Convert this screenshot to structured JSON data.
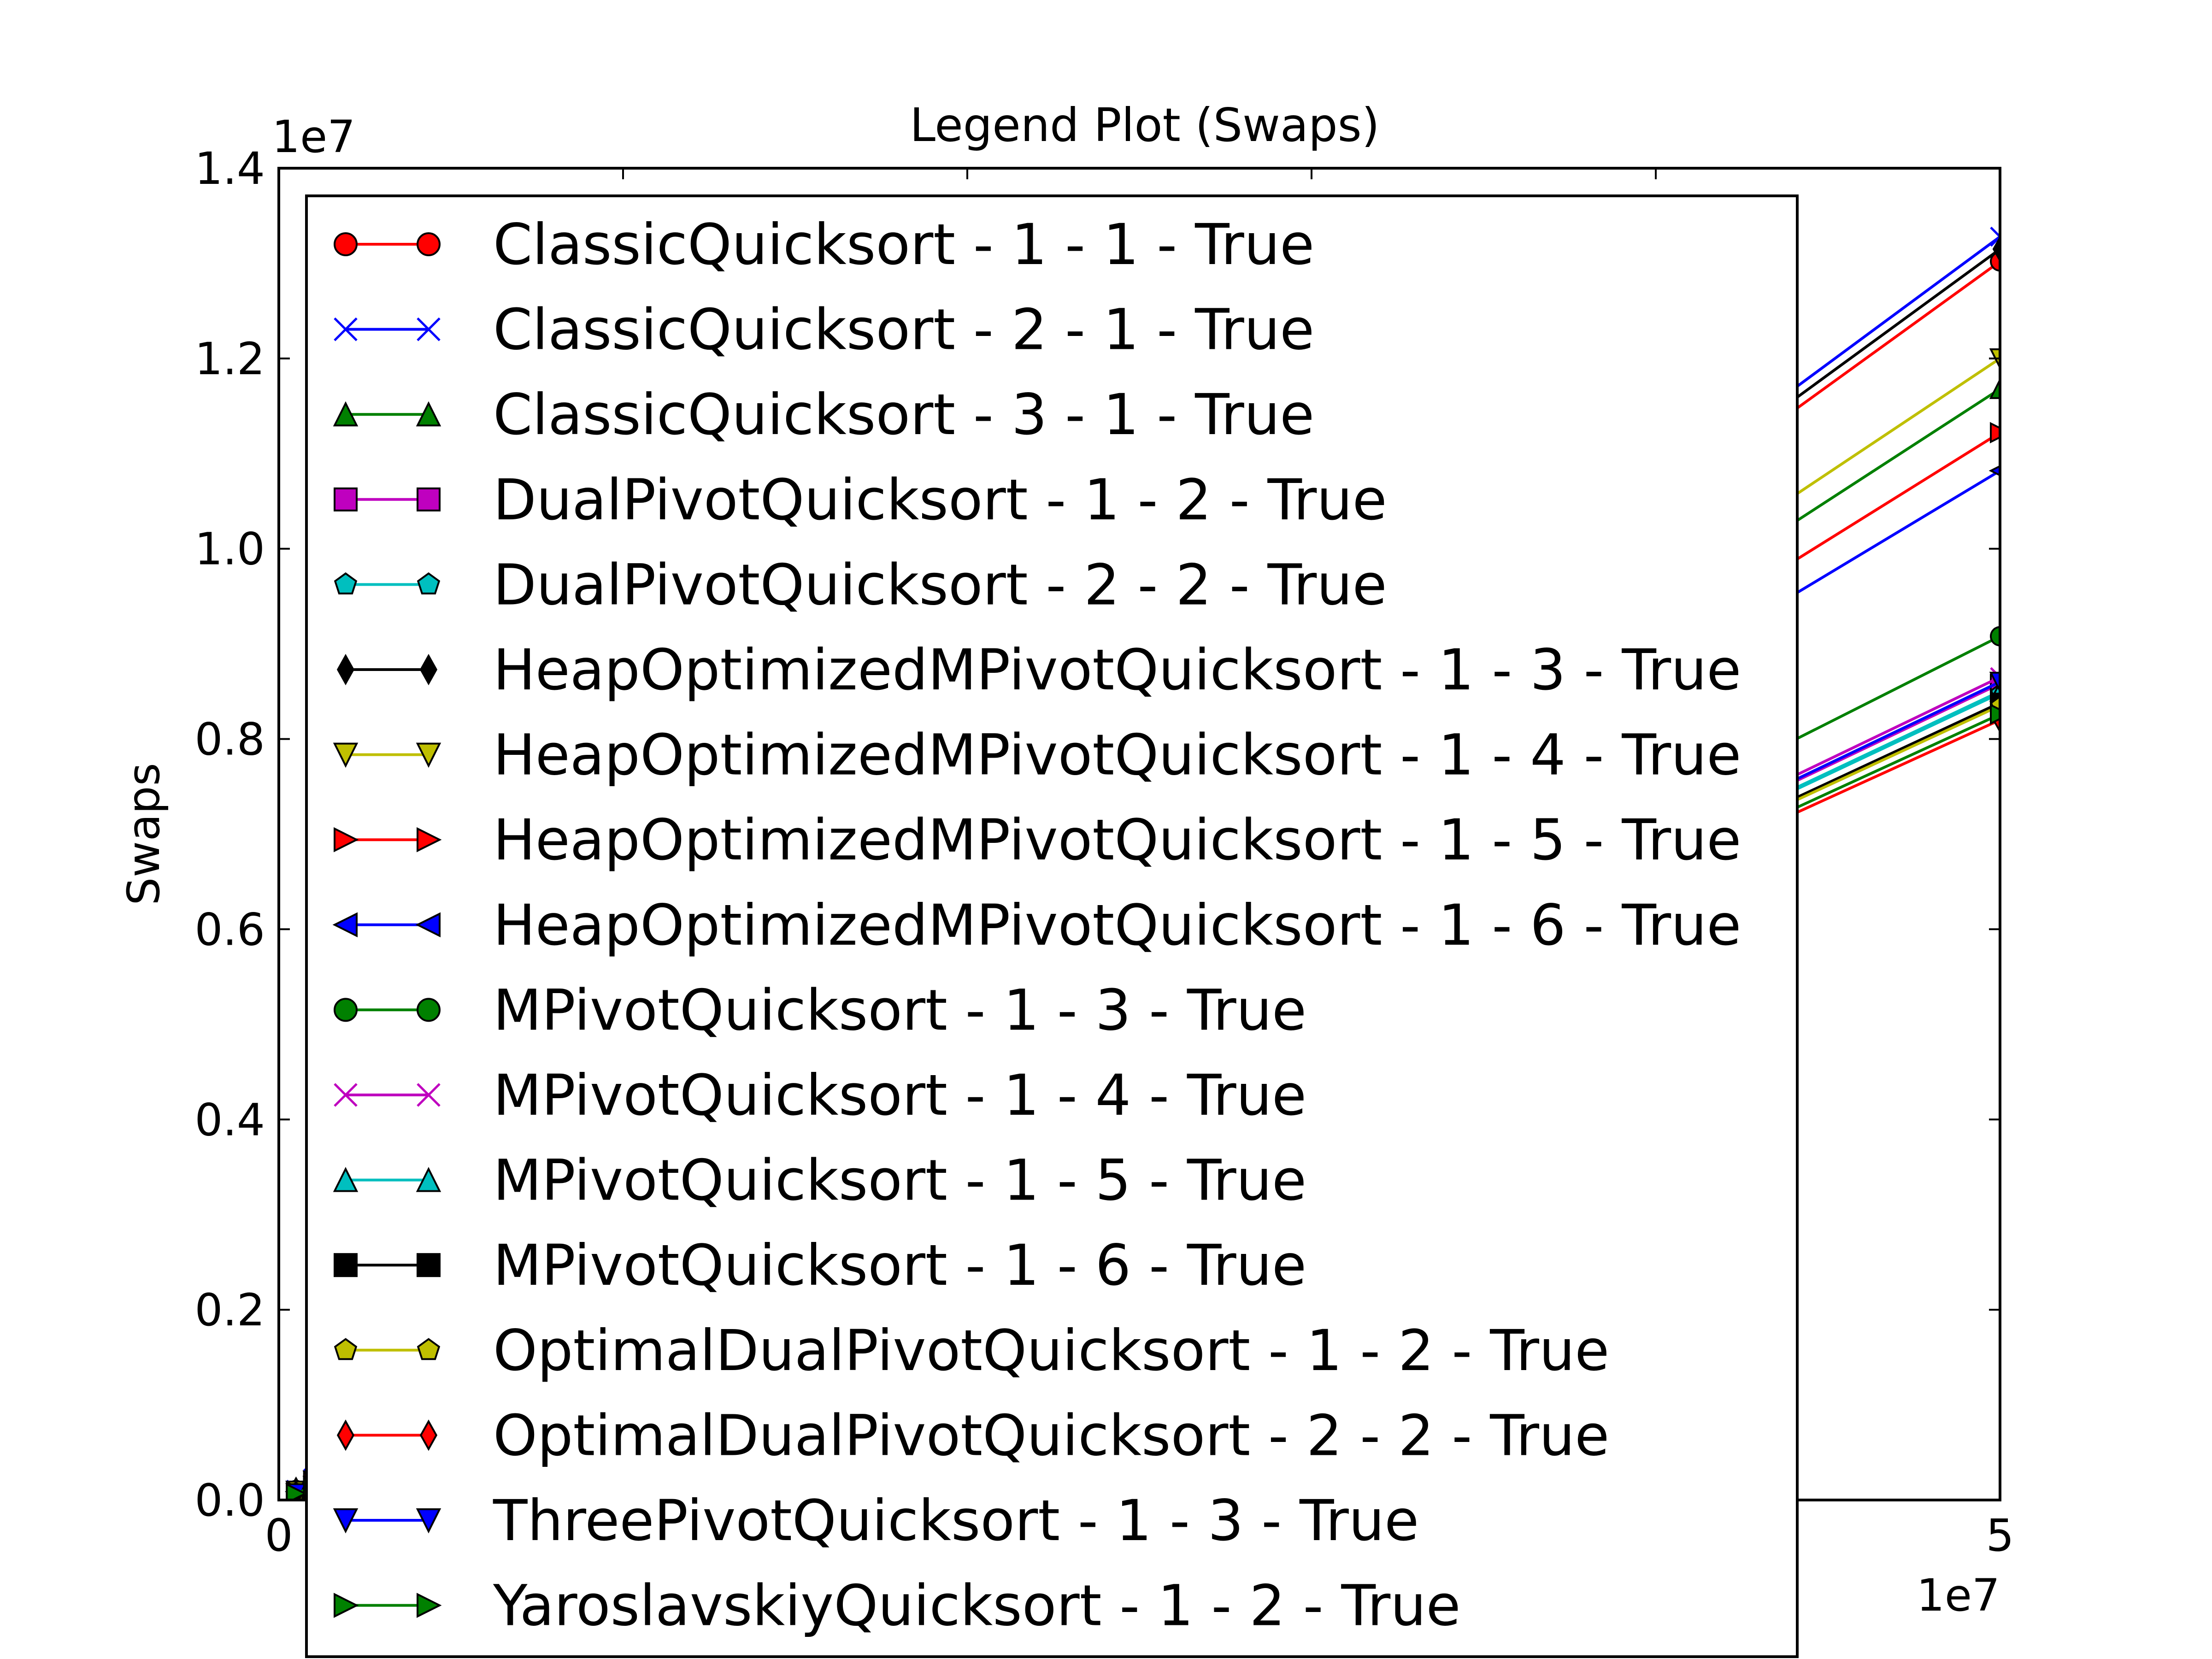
{
  "chart_data": {
    "type": "line",
    "title": "Legend Plot (Swaps)",
    "xlabel": "",
    "ylabel": "Swaps",
    "x_offset_label": "1e7",
    "y_offset_label": "1e7",
    "xlim": [
      0,
      5
    ],
    "ylim": [
      0.0,
      1.4
    ],
    "x_ticks": [
      0,
      1,
      2,
      3,
      4,
      5
    ],
    "x_tick_labels": [
      "0",
      "",
      "",
      "",
      "",
      "5"
    ],
    "y_ticks": [
      0.0,
      0.2,
      0.4,
      0.6,
      0.8,
      1.0,
      1.2,
      1.4
    ],
    "y_tick_labels": [
      "0.0",
      "0.2",
      "0.4",
      "0.6",
      "0.8",
      "1.0",
      "1.2",
      "1.4"
    ],
    "grid": false,
    "legend_position": "upper-left",
    "x": [
      0.05,
      0.1,
      0.15,
      0.2,
      0.25,
      5.0
    ],
    "series": [
      {
        "name": "ClassicQuicksort - 1 - 1 - True",
        "color": "#ff0000",
        "marker": "circle",
        "values": [
          0.0105,
          0.0222,
          0.0342,
          0.0463,
          0.0586,
          1.302
        ]
      },
      {
        "name": "ClassicQuicksort - 2 - 1 - True",
        "color": "#0000ff",
        "marker": "x",
        "values": [
          0.0108,
          0.0227,
          0.0349,
          0.0473,
          0.0598,
          1.328
        ]
      },
      {
        "name": "ClassicQuicksort - 3 - 1 - True",
        "color": "#008000",
        "marker": "triangle-up",
        "values": [
          0.0095,
          0.0199,
          0.0306,
          0.0415,
          0.0525,
          1.168
        ]
      },
      {
        "name": "DualPivotQuicksort - 1 - 2 - True",
        "color": "#bf00bf",
        "marker": "square",
        "values": [
          0.007,
          0.0146,
          0.0225,
          0.0305,
          0.0386,
          0.858
        ]
      },
      {
        "name": "DualPivotQuicksort - 2 - 2 - True",
        "color": "#00bfbf",
        "marker": "pentagon",
        "values": [
          0.0069,
          0.0144,
          0.0222,
          0.0301,
          0.0381,
          0.848
        ]
      },
      {
        "name": "HeapOptimizedMPivotQuicksort - 1 - 3 - True",
        "color": "#000000",
        "marker": "diamond",
        "values": [
          0.0107,
          0.0224,
          0.0345,
          0.0468,
          0.0592,
          1.315
        ]
      },
      {
        "name": "HeapOptimizedMPivotQuicksort - 1 - 4 - True",
        "color": "#bfbf00",
        "marker": "triangle-down",
        "values": [
          0.0097,
          0.0204,
          0.0315,
          0.0427,
          0.054,
          1.2
        ]
      },
      {
        "name": "HeapOptimizedMPivotQuicksort - 1 - 5 - True",
        "color": "#ff0000",
        "marker": "triangle-right",
        "values": [
          0.0091,
          0.0191,
          0.0294,
          0.0399,
          0.0505,
          1.122
        ]
      },
      {
        "name": "HeapOptimizedMPivotQuicksort - 1 - 6 - True",
        "color": "#0000ff",
        "marker": "triangle-left",
        "values": [
          0.0088,
          0.0184,
          0.0284,
          0.0385,
          0.0487,
          1.082
        ]
      },
      {
        "name": "MPivotQuicksort - 1 - 3 - True",
        "color": "#008000",
        "marker": "circle",
        "values": [
          0.0074,
          0.0155,
          0.0239,
          0.0324,
          0.0409,
          0.908
        ]
      },
      {
        "name": "MPivotQuicksort - 1 - 4 - True",
        "color": "#bf00bf",
        "marker": "x",
        "values": [
          0.007,
          0.0147,
          0.0227,
          0.0307,
          0.0389,
          0.865
        ]
      },
      {
        "name": "MPivotQuicksort - 1 - 5 - True",
        "color": "#00bfbf",
        "marker": "triangle-up",
        "values": [
          0.0069,
          0.0145,
          0.0223,
          0.0302,
          0.0382,
          0.85
        ]
      },
      {
        "name": "MPivotQuicksort - 1 - 6 - True",
        "color": "#000000",
        "marker": "square",
        "values": [
          0.0068,
          0.0143,
          0.022,
          0.0298,
          0.0377,
          0.838
        ]
      },
      {
        "name": "OptimalDualPivotQuicksort - 1 - 2 - True",
        "color": "#bfbf00",
        "marker": "pentagon",
        "values": [
          0.0068,
          0.0142,
          0.0219,
          0.0297,
          0.0376,
          0.835
        ]
      },
      {
        "name": "OptimalDualPivotQuicksort - 2 - 2 - True",
        "color": "#ff0000",
        "marker": "diamond",
        "values": [
          0.0067,
          0.014,
          0.0215,
          0.0292,
          0.0369,
          0.82
        ]
      },
      {
        "name": "ThreePivotQuicksort - 1 - 3 - True",
        "color": "#0000ff",
        "marker": "triangle-down",
        "values": [
          0.007,
          0.0147,
          0.0226,
          0.0306,
          0.0387,
          0.86
        ]
      },
      {
        "name": "YaroslavskiyQuicksort - 1 - 2 - True",
        "color": "#008000",
        "marker": "triangle-right",
        "values": [
          0.0067,
          0.0141,
          0.0217,
          0.0294,
          0.0372,
          0.826
        ]
      }
    ]
  }
}
